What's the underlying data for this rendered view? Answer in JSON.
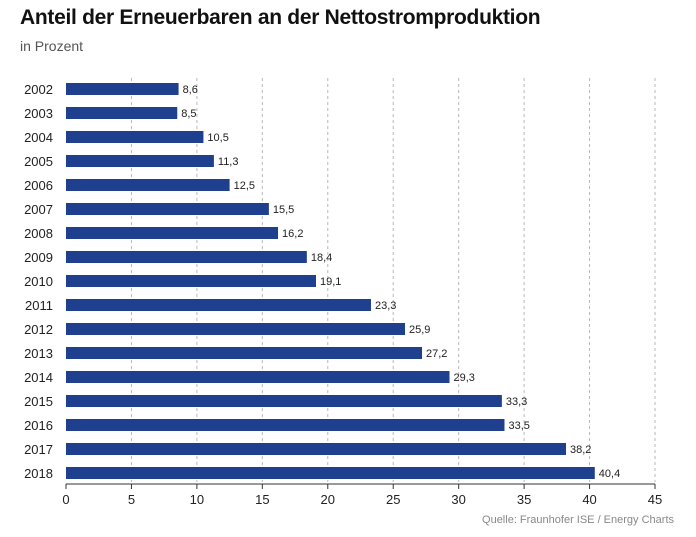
{
  "title": "Anteil der Erneuerbaren an der Nettostromproduktion",
  "subtitle": "in Prozent",
  "source": "Quelle: Fraunhofer ISE / Energy Charts",
  "colors": {
    "bar": "#1f3f8f",
    "grid": "#b8b8b8",
    "axis": "#333333",
    "text": "#222222"
  },
  "chart_data": {
    "type": "bar",
    "orientation": "horizontal",
    "categories": [
      "2002",
      "2003",
      "2004",
      "2005",
      "2006",
      "2007",
      "2008",
      "2009",
      "2010",
      "2011",
      "2012",
      "2013",
      "2014",
      "2015",
      "2016",
      "2017",
      "2018"
    ],
    "values": [
      8.6,
      8.5,
      10.5,
      11.3,
      12.5,
      15.5,
      16.2,
      18.4,
      19.1,
      23.3,
      25.9,
      27.2,
      29.3,
      33.3,
      33.5,
      38.2,
      40.4
    ],
    "value_labels": [
      "8,6",
      "8,5",
      "10,5",
      "11,3",
      "12,5",
      "15,5",
      "16,2",
      "18,4",
      "19,1",
      "23,3",
      "25,9",
      "27,2",
      "29,3",
      "33,3",
      "33,5",
      "38,2",
      "40,4"
    ],
    "title": "Anteil der Erneuerbaren an der Nettostromproduktion",
    "subtitle": "in Prozent",
    "xlim": [
      0,
      45
    ],
    "x_ticks": [
      0,
      5,
      10,
      15,
      20,
      25,
      30,
      35,
      40,
      45
    ],
    "grid": "vertical dashed",
    "legend": "none"
  }
}
